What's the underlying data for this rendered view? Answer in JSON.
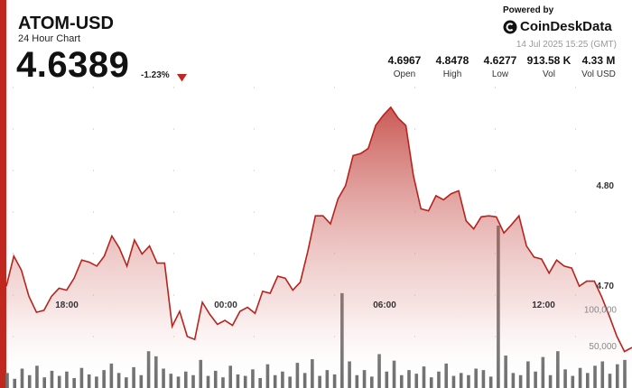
{
  "header": {
    "symbol": "ATOM-USD",
    "subtitle": "24 Hour Chart",
    "price": "4.6389",
    "change": "-1.23%"
  },
  "brand": {
    "powered_by": "Powered by",
    "name": "CoinDeskData",
    "timestamp": "14 Jul 2025 15:25 (GMT)"
  },
  "stats": [
    {
      "value": "4.6967",
      "label": "Open"
    },
    {
      "value": "4.8478",
      "label": "High"
    },
    {
      "value": "4.6277",
      "label": "Low"
    },
    {
      "value": "913.58 K",
      "label": "Vol"
    },
    {
      "value": "4.33 M",
      "label": "Vol USD"
    }
  ],
  "colors": {
    "accent": "#c0271f",
    "line": "#b8231d",
    "volume": "#6e6e6e"
  },
  "chart_data": {
    "type": "area",
    "x_tick_labels": [
      "18:00",
      "00:00",
      "06:00",
      "12:00"
    ],
    "price_axis": {
      "ticks": [
        4.7,
        4.8
      ],
      "tick_labels": [
        "4.70",
        "4.80"
      ],
      "range": [
        4.605,
        4.895
      ]
    },
    "volume_axis": {
      "ticks": [
        50000,
        100000
      ],
      "tick_labels": [
        "50,000",
        "100,000"
      ],
      "range": [
        0,
        240000
      ]
    },
    "price_values": [
      4.7,
      4.73,
      4.716,
      4.69,
      4.674,
      4.676,
      4.69,
      4.698,
      4.696,
      4.708,
      4.726,
      4.724,
      4.72,
      4.73,
      4.75,
      4.738,
      4.72,
      4.746,
      4.732,
      4.74,
      4.723,
      4.723,
      4.66,
      4.675,
      4.65,
      4.647,
      4.684,
      4.672,
      4.662,
      4.666,
      4.661,
      4.675,
      4.679,
      4.673,
      4.695,
      4.693,
      4.71,
      4.708,
      4.696,
      4.704,
      4.735,
      4.77,
      4.77,
      4.762,
      4.787,
      4.8,
      4.83,
      4.832,
      4.837,
      4.86,
      4.87,
      4.878,
      4.867,
      4.86,
      4.81,
      4.777,
      4.775,
      4.79,
      4.786,
      4.792,
      4.795,
      4.765,
      4.757,
      4.769,
      4.77,
      4.769,
      4.753,
      4.761,
      4.77,
      4.74,
      4.729,
      4.727,
      4.713,
      4.726,
      4.72,
      4.718,
      4.7,
      4.705,
      4.705,
      4.689,
      4.67,
      4.65,
      4.635,
      4.639
    ],
    "volume_values": [
      12000,
      4000,
      18000,
      9000,
      22000,
      6000,
      15000,
      8000,
      14000,
      5000,
      19000,
      10000,
      7000,
      16000,
      25000,
      12000,
      6000,
      20000,
      9000,
      42000,
      35000,
      18000,
      11000,
      7000,
      14000,
      9000,
      30000,
      8000,
      15000,
      6000,
      22000,
      10000,
      8000,
      17000,
      5000,
      24000,
      9000,
      14000,
      7000,
      26000,
      12000,
      31000,
      8000,
      16000,
      10000,
      122000,
      28000,
      9000,
      16000,
      7000,
      38000,
      14000,
      29000,
      9000,
      16000,
      11000,
      21000,
      6000,
      14000,
      25000,
      8000,
      12000,
      9000,
      18000,
      16000,
      7000,
      215000,
      36000,
      12000,
      9000,
      28000,
      14000,
      34000,
      9000,
      42000,
      17000,
      8000,
      19000,
      12000,
      22000,
      28000,
      11000,
      24000,
      30000
    ]
  }
}
